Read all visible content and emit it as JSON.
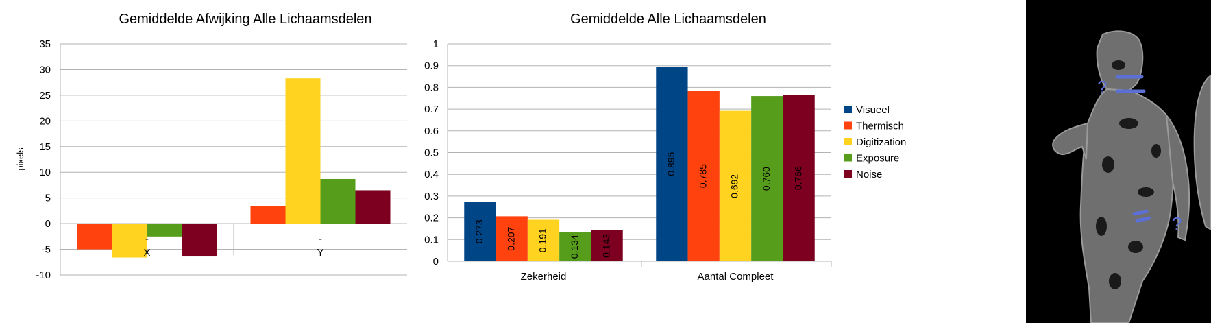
{
  "colors": {
    "Visueel": "#004586",
    "Thermisch": "#ff420e",
    "Digitization": "#ffd320",
    "Exposure": "#579d1c",
    "Noise": "#7e0021",
    "grid": "#b3b3b3",
    "overlay": "#5b6fd6"
  },
  "chart_data": [
    {
      "type": "bar",
      "title": "Gemiddelde Afwijking Alle Lichaamsdelen",
      "xlabel": "",
      "ylabel": "pixels",
      "categories": [
        "X",
        "Y"
      ],
      "category_marks": [
        "-",
        "-"
      ],
      "ylim": [
        -10,
        35
      ],
      "yticks": [
        35,
        30,
        25,
        20,
        15,
        10,
        5,
        0,
        -5,
        -10
      ],
      "grid": true,
      "legend": "none",
      "series": [
        {
          "values": [
            -5.0,
            3.4
          ]
        },
        {
          "values": [
            -6.6,
            28.3
          ]
        },
        {
          "values": [
            -2.5,
            8.7
          ]
        },
        {
          "values": [
            -6.4,
            6.5
          ]
        }
      ]
    },
    {
      "type": "bar",
      "title": "Gemiddelde Alle Lichaamsdelen",
      "xlabel": "",
      "ylabel": "",
      "categories": [
        "Zekerheid",
        "Aantal Compleet"
      ],
      "ylim": [
        0,
        1
      ],
      "yticks": [
        1,
        0.9,
        0.8,
        0.7,
        0.6,
        0.5,
        0.4,
        0.3,
        0.2,
        0.1,
        0
      ],
      "grid": true,
      "legend": "right",
      "legend_entries": [
        "Visueel",
        "Thermisch",
        "Digitization",
        "Exposure",
        "Noise"
      ],
      "series": [
        {
          "name": "Visueel",
          "values": [
            0.273,
            0.895
          ],
          "labels": [
            "0.273",
            "0.895"
          ]
        },
        {
          "name": "Thermisch",
          "values": [
            0.207,
            0.785
          ],
          "labels": [
            "0.207",
            "0.785"
          ]
        },
        {
          "name": "Digitization",
          "values": [
            0.191,
            0.692
          ],
          "labels": [
            "0.191",
            "0.692"
          ]
        },
        {
          "name": "Exposure",
          "values": [
            0.134,
            0.76
          ],
          "labels": [
            "0.134",
            "0.760"
          ]
        },
        {
          "name": "Noise",
          "values": [
            0.143,
            0.766
          ],
          "labels": [
            "0.143",
            "0.766"
          ]
        }
      ]
    }
  ],
  "thermal_image": {
    "markers": [
      "?",
      "?"
    ]
  }
}
